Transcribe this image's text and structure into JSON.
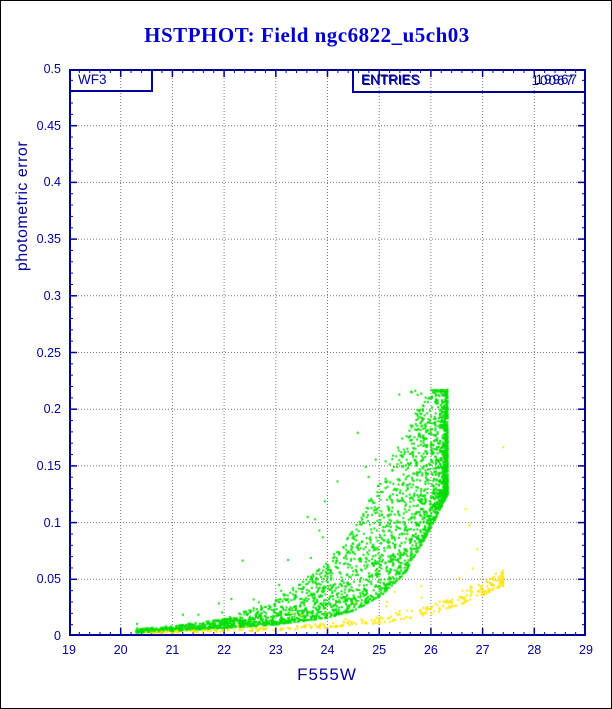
{
  "chart_data": {
    "type": "scatter",
    "title": "HSTPHOT: Field ngc6822_u5ch03",
    "title_color": "#0000cc",
    "axis_color": "#000099",
    "grid_color": "#777777",
    "xlabel": "F555W",
    "ylabel": "photometric error",
    "xlim": [
      19,
      29
    ],
    "ylim": [
      0,
      0.5
    ],
    "x_tick_labels": [
      "19",
      "20",
      "21",
      "22",
      "23",
      "24",
      "25",
      "26",
      "27",
      "28",
      "29"
    ],
    "y_tick_labels": [
      "0",
      "0.05",
      "0.1",
      "0.15",
      "0.2",
      "0.25",
      "0.3",
      "0.35",
      "0.4",
      "0.45",
      "0.5"
    ],
    "x_minor_per_major": 5,
    "y_minor_per_major": 5,
    "grid_style": "dotted",
    "detector_label": "WF3",
    "stats": {
      "label": "ENTRIES",
      "entries": [
        "19967",
        "10067"
      ]
    },
    "series": [
      {
        "name": "green-photometry-points",
        "color": "#00dd00",
        "n": 3200,
        "mag_min": 20.3,
        "mag_max": 26.32,
        "mag_power": 2.3,
        "error_cap": 0.2175,
        "env_mag": [
          20.3,
          21.0,
          22.0,
          23.0,
          24.0,
          24.5,
          25.0,
          25.5,
          26.0,
          26.32
        ],
        "env_lo": [
          0.003,
          0.0045,
          0.007,
          0.01,
          0.016,
          0.022,
          0.034,
          0.055,
          0.095,
          0.125
        ],
        "env_hi": [
          0.006,
          0.009,
          0.015,
          0.032,
          0.065,
          0.095,
          0.135,
          0.185,
          0.2175,
          0.2175
        ],
        "spread_power": 1.7,
        "outlier_frac": 0.02,
        "outlier_boost": 4
      },
      {
        "name": "yellow-photometry-points",
        "color": "#ffe400",
        "n": 330,
        "mag_min": 20.4,
        "mag_max": 27.4,
        "mag_power": 1.8,
        "error_cap": 0.2175,
        "env_mag": [
          20.4,
          22.0,
          23.0,
          24.0,
          25.0,
          26.0,
          26.5,
          27.0,
          27.4
        ],
        "env_lo": [
          0.002,
          0.0035,
          0.005,
          0.007,
          0.011,
          0.019,
          0.026,
          0.036,
          0.044
        ],
        "env_hi": [
          0.004,
          0.006,
          0.008,
          0.011,
          0.017,
          0.028,
          0.038,
          0.05,
          0.058
        ],
        "spread_power": 1.2,
        "outlier_frac": 0.05,
        "outlier_boost": 3
      }
    ]
  }
}
